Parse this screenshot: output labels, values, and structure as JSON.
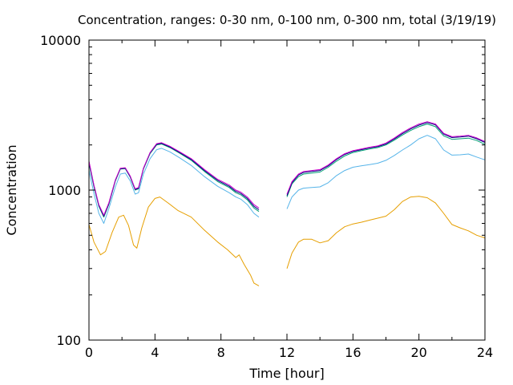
{
  "chart_data": {
    "type": "line",
    "title": "Concentration, ranges: 0-30 nm, 0-100 nm, 0-300 nm, total (3/19/19)",
    "xlabel": "Time [hour]",
    "ylabel": "Concentration",
    "xlim": [
      0,
      24
    ],
    "ylim": [
      100,
      10000
    ],
    "yscale": "log",
    "grid": false,
    "xticks": [
      0,
      4,
      8,
      12,
      16,
      20,
      24
    ],
    "xtick_labels": [
      "0",
      "4",
      "8",
      "12",
      "16",
      "20",
      "24"
    ],
    "yticks": [
      100,
      1000,
      10000
    ],
    "ytick_labels": [
      "100",
      "1000",
      "10000"
    ],
    "series": [
      {
        "color": "#e69f00",
        "segments": [
          [
            [
              0,
              590
            ],
            [
              0.3,
              450
            ],
            [
              0.7,
              370
            ],
            [
              1.0,
              390
            ],
            [
              1.4,
              520
            ],
            [
              1.8,
              660
            ],
            [
              2.1,
              680
            ],
            [
              2.4,
              580
            ],
            [
              2.7,
              430
            ],
            [
              2.9,
              410
            ],
            [
              3.2,
              560
            ],
            [
              3.6,
              770
            ],
            [
              4.0,
              880
            ],
            [
              4.3,
              900
            ],
            [
              4.8,
              820
            ],
            [
              5.4,
              730
            ],
            [
              6.2,
              660
            ],
            [
              7.0,
              540
            ],
            [
              7.8,
              450
            ],
            [
              8.4,
              400
            ],
            [
              8.9,
              355
            ],
            [
              9.1,
              370
            ],
            [
              9.4,
              320
            ],
            [
              9.8,
              270
            ],
            [
              10.0,
              240
            ],
            [
              10.3,
              230
            ]
          ],
          [
            [
              12.0,
              300
            ],
            [
              12.3,
              380
            ],
            [
              12.7,
              450
            ],
            [
              13.0,
              470
            ],
            [
              13.5,
              470
            ],
            [
              14.0,
              445
            ],
            [
              14.5,
              460
            ],
            [
              15.0,
              520
            ],
            [
              15.5,
              570
            ],
            [
              16.0,
              595
            ],
            [
              16.5,
              610
            ],
            [
              17.0,
              630
            ],
            [
              17.5,
              650
            ],
            [
              18.0,
              670
            ],
            [
              18.5,
              740
            ],
            [
              19.0,
              840
            ],
            [
              19.5,
              900
            ],
            [
              20.0,
              910
            ],
            [
              20.5,
              890
            ],
            [
              21.0,
              820
            ],
            [
              21.5,
              700
            ],
            [
              22.0,
              590
            ],
            [
              22.5,
              560
            ],
            [
              23.0,
              535
            ],
            [
              23.5,
              500
            ],
            [
              24.0,
              480
            ]
          ]
        ]
      },
      {
        "color": "#56b4e9",
        "segments": [
          [
            [
              0,
              1350
            ],
            [
              0.3,
              950
            ],
            [
              0.6,
              700
            ],
            [
              0.9,
              600
            ],
            [
              1.2,
              750
            ],
            [
              1.6,
              1050
            ],
            [
              1.9,
              1280
            ],
            [
              2.2,
              1300
            ],
            [
              2.5,
              1150
            ],
            [
              2.8,
              940
            ],
            [
              3.0,
              960
            ],
            [
              3.3,
              1280
            ],
            [
              3.7,
              1620
            ],
            [
              4.1,
              1860
            ],
            [
              4.4,
              1900
            ],
            [
              4.9,
              1800
            ],
            [
              5.5,
              1640
            ],
            [
              6.2,
              1460
            ],
            [
              7.0,
              1230
            ],
            [
              7.8,
              1060
            ],
            [
              8.5,
              960
            ],
            [
              8.9,
              900
            ],
            [
              9.2,
              870
            ],
            [
              9.6,
              800
            ],
            [
              10.0,
              700
            ],
            [
              10.3,
              660
            ]
          ],
          [
            [
              12.0,
              750
            ],
            [
              12.3,
              900
            ],
            [
              12.7,
              1000
            ],
            [
              13.0,
              1030
            ],
            [
              13.5,
              1040
            ],
            [
              14.0,
              1050
            ],
            [
              14.5,
              1120
            ],
            [
              15.0,
              1250
            ],
            [
              15.5,
              1350
            ],
            [
              16.0,
              1420
            ],
            [
              16.5,
              1450
            ],
            [
              17.0,
              1480
            ],
            [
              17.5,
              1510
            ],
            [
              18.0,
              1580
            ],
            [
              18.5,
              1700
            ],
            [
              19.0,
              1850
            ],
            [
              19.5,
              2000
            ],
            [
              20.0,
              2200
            ],
            [
              20.5,
              2320
            ],
            [
              21.0,
              2200
            ],
            [
              21.5,
              1850
            ],
            [
              22.0,
              1710
            ],
            [
              22.5,
              1720
            ],
            [
              23.0,
              1740
            ],
            [
              23.5,
              1660
            ],
            [
              24.0,
              1590
            ]
          ]
        ]
      },
      {
        "color": "#009e73",
        "segments": [
          [
            [
              0,
              1500
            ],
            [
              0.3,
              1050
            ],
            [
              0.6,
              780
            ],
            [
              0.9,
              660
            ],
            [
              1.2,
              800
            ],
            [
              1.6,
              1150
            ],
            [
              1.9,
              1380
            ],
            [
              2.2,
              1390
            ],
            [
              2.5,
              1220
            ],
            [
              2.8,
              1000
            ],
            [
              3.0,
              1020
            ],
            [
              3.3,
              1380
            ],
            [
              3.7,
              1750
            ],
            [
              4.1,
              2000
            ],
            [
              4.4,
              2030
            ],
            [
              4.9,
              1920
            ],
            [
              5.5,
              1760
            ],
            [
              6.2,
              1580
            ],
            [
              7.0,
              1330
            ],
            [
              7.8,
              1140
            ],
            [
              8.5,
              1040
            ],
            [
              8.9,
              960
            ],
            [
              9.2,
              930
            ],
            [
              9.6,
              860
            ],
            [
              10.0,
              760
            ],
            [
              10.3,
              720
            ]
          ],
          [
            [
              12.0,
              900
            ],
            [
              12.3,
              1100
            ],
            [
              12.7,
              1230
            ],
            [
              13.0,
              1280
            ],
            [
              13.5,
              1300
            ],
            [
              14.0,
              1320
            ],
            [
              14.5,
              1420
            ],
            [
              15.0,
              1560
            ],
            [
              15.5,
              1690
            ],
            [
              16.0,
              1780
            ],
            [
              16.5,
              1830
            ],
            [
              17.0,
              1880
            ],
            [
              17.5,
              1920
            ],
            [
              18.0,
              2000
            ],
            [
              18.5,
              2150
            ],
            [
              19.0,
              2330
            ],
            [
              19.5,
              2500
            ],
            [
              20.0,
              2650
            ],
            [
              20.5,
              2760
            ],
            [
              21.0,
              2650
            ],
            [
              21.5,
              2300
            ],
            [
              22.0,
              2180
            ],
            [
              22.5,
              2200
            ],
            [
              23.0,
              2220
            ],
            [
              23.5,
              2140
            ],
            [
              24.0,
              2020
            ]
          ]
        ]
      },
      {
        "color": "#000080",
        "segments": [
          [
            [
              0,
              1540
            ],
            [
              0.3,
              1070
            ],
            [
              0.6,
              790
            ],
            [
              0.9,
              670
            ],
            [
              1.2,
              810
            ],
            [
              1.6,
              1160
            ],
            [
              1.9,
              1390
            ],
            [
              2.2,
              1400
            ],
            [
              2.5,
              1230
            ],
            [
              2.8,
              1010
            ],
            [
              3.0,
              1030
            ],
            [
              3.3,
              1390
            ],
            [
              3.7,
              1770
            ],
            [
              4.1,
              2020
            ],
            [
              4.4,
              2050
            ],
            [
              4.9,
              1940
            ],
            [
              5.5,
              1780
            ],
            [
              6.2,
              1600
            ],
            [
              7.0,
              1350
            ],
            [
              7.8,
              1160
            ],
            [
              8.5,
              1060
            ],
            [
              8.9,
              980
            ],
            [
              9.2,
              950
            ],
            [
              9.6,
              880
            ],
            [
              10.0,
              780
            ],
            [
              10.3,
              740
            ]
          ],
          [
            [
              12.0,
              920
            ],
            [
              12.3,
              1120
            ],
            [
              12.7,
              1260
            ],
            [
              13.0,
              1310
            ],
            [
              13.5,
              1330
            ],
            [
              14.0,
              1350
            ],
            [
              14.5,
              1450
            ],
            [
              15.0,
              1600
            ],
            [
              15.5,
              1730
            ],
            [
              16.0,
              1810
            ],
            [
              16.5,
              1860
            ],
            [
              17.0,
              1910
            ],
            [
              17.5,
              1950
            ],
            [
              18.0,
              2030
            ],
            [
              18.5,
              2190
            ],
            [
              19.0,
              2380
            ],
            [
              19.5,
              2560
            ],
            [
              20.0,
              2710
            ],
            [
              20.5,
              2820
            ],
            [
              21.0,
              2720
            ],
            [
              21.5,
              2360
            ],
            [
              22.0,
              2240
            ],
            [
              22.5,
              2260
            ],
            [
              23.0,
              2290
            ],
            [
              23.5,
              2200
            ],
            [
              24.0,
              2080
            ]
          ]
        ]
      },
      {
        "color": "#cc00cc",
        "segments": [
          [
            [
              0,
              1560
            ],
            [
              0.3,
              1080
            ],
            [
              0.6,
              800
            ],
            [
              0.9,
              680
            ],
            [
              1.2,
              820
            ],
            [
              1.6,
              1170
            ],
            [
              1.9,
              1400
            ],
            [
              2.2,
              1410
            ],
            [
              2.5,
              1240
            ],
            [
              2.8,
              1020
            ],
            [
              3.0,
              1040
            ],
            [
              3.3,
              1400
            ],
            [
              3.7,
              1780
            ],
            [
              4.1,
              2040
            ],
            [
              4.4,
              2070
            ],
            [
              4.9,
              1960
            ],
            [
              5.5,
              1800
            ],
            [
              6.2,
              1620
            ],
            [
              7.0,
              1370
            ],
            [
              7.8,
              1180
            ],
            [
              8.5,
              1080
            ],
            [
              8.9,
              1000
            ],
            [
              9.2,
              970
            ],
            [
              9.6,
              900
            ],
            [
              10.0,
              800
            ],
            [
              10.3,
              760
            ]
          ],
          [
            [
              12.0,
              940
            ],
            [
              12.3,
              1140
            ],
            [
              12.7,
              1280
            ],
            [
              13.0,
              1330
            ],
            [
              13.5,
              1350
            ],
            [
              14.0,
              1370
            ],
            [
              14.5,
              1470
            ],
            [
              15.0,
              1620
            ],
            [
              15.5,
              1750
            ],
            [
              16.0,
              1830
            ],
            [
              16.5,
              1880
            ],
            [
              17.0,
              1930
            ],
            [
              17.5,
              1970
            ],
            [
              18.0,
              2060
            ],
            [
              18.5,
              2220
            ],
            [
              19.0,
              2420
            ],
            [
              19.5,
              2600
            ],
            [
              20.0,
              2760
            ],
            [
              20.5,
              2860
            ],
            [
              21.0,
              2760
            ],
            [
              21.5,
              2390
            ],
            [
              22.0,
              2270
            ],
            [
              22.5,
              2290
            ],
            [
              23.0,
              2320
            ],
            [
              23.5,
              2230
            ],
            [
              24.0,
              2110
            ]
          ]
        ]
      }
    ]
  }
}
